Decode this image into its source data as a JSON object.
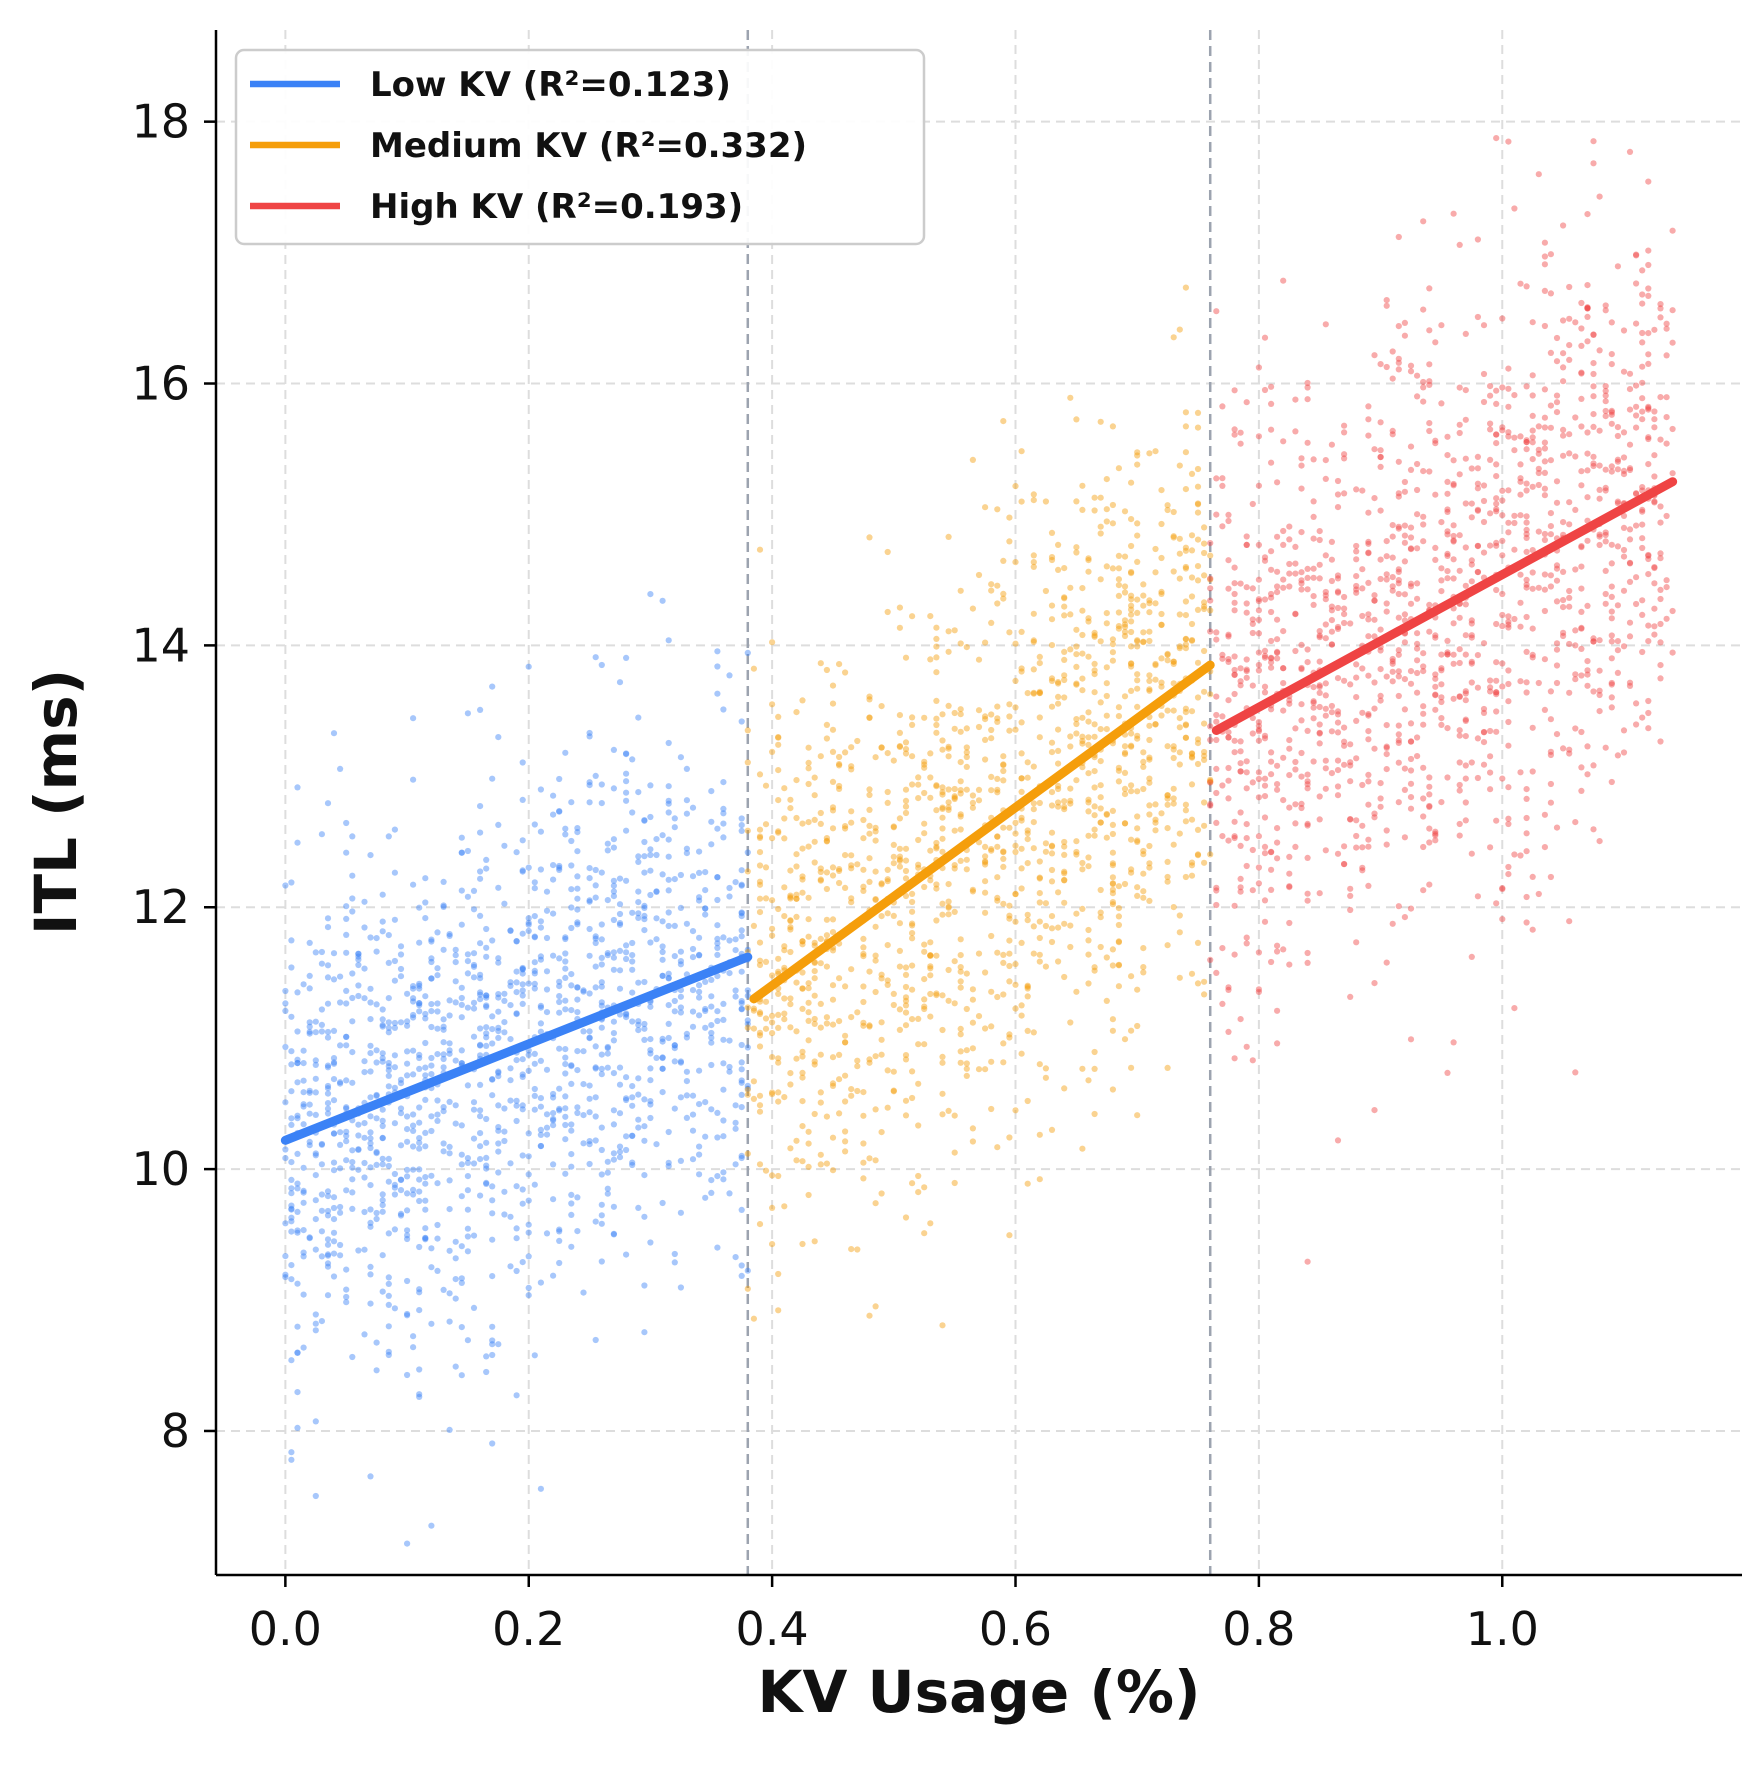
{
  "chart_data": {
    "type": "scatter",
    "title": "",
    "xlabel": "KV Usage (%)",
    "ylabel": "ITL (ms)",
    "xlim": [
      -0.057,
      1.197
    ],
    "ylim": [
      6.9,
      18.7
    ],
    "xticks": [
      0.0,
      0.2,
      0.4,
      0.6,
      0.8,
      1.0
    ],
    "xtick_labels": [
      "0.0",
      "0.2",
      "0.4",
      "0.6",
      "0.8",
      "1.0"
    ],
    "yticks": [
      8,
      10,
      12,
      14,
      16,
      18
    ],
    "ytick_labels": [
      "8",
      "10",
      "12",
      "14",
      "16",
      "18"
    ],
    "grid": true,
    "legend_position": "upper-left",
    "thresholds": [
      0.38,
      0.76
    ],
    "series": [
      {
        "name": "Low KV",
        "label": "Low KV (R²=0.123)",
        "r2": 0.123,
        "color": "#3b82f6",
        "x_range": [
          0.0,
          0.38
        ],
        "fit": {
          "x": [
            0.0,
            0.38
          ],
          "y": [
            10.22,
            11.62
          ]
        },
        "scatter": {
          "y_center_start": 10.22,
          "y_center_end": 11.62,
          "spread": 1.05,
          "count": 1400
        }
      },
      {
        "name": "Medium KV",
        "label": "Medium KV (R²=0.332)",
        "r2": 0.332,
        "color": "#f59e0b",
        "x_range": [
          0.38,
          0.76
        ],
        "fit": {
          "x": [
            0.385,
            0.76
          ],
          "y": [
            11.3,
            13.85
          ]
        },
        "scatter": {
          "y_center_start": 11.3,
          "y_center_end": 13.85,
          "spread": 1.1,
          "count": 1400
        }
      },
      {
        "name": "High KV",
        "label": "High KV (R²=0.193)",
        "r2": 0.193,
        "color": "#ef4444",
        "x_range": [
          0.76,
          1.14
        ],
        "fit": {
          "x": [
            0.765,
            1.14
          ],
          "y": [
            13.35,
            15.25
          ]
        },
        "scatter": {
          "y_center_start": 13.35,
          "y_center_end": 15.25,
          "spread": 1.15,
          "count": 1400
        }
      }
    ]
  }
}
